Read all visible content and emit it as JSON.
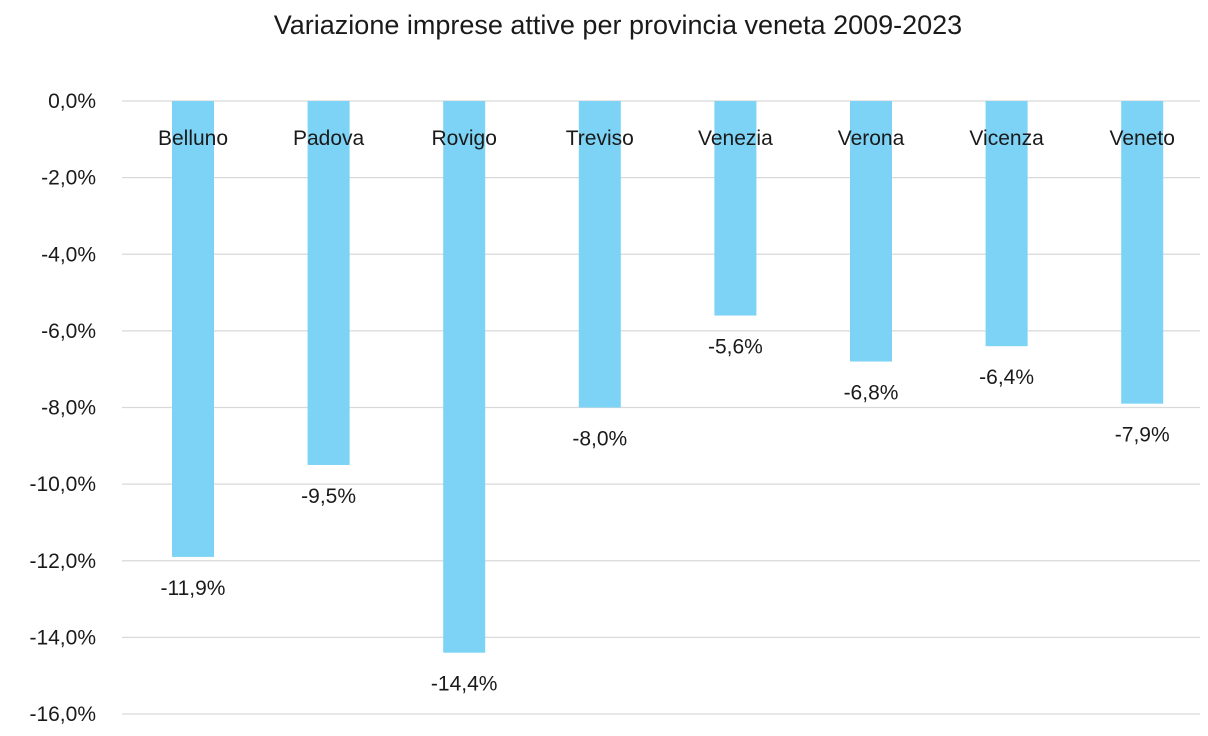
{
  "chart_data": {
    "type": "bar",
    "title": "Variazione imprese attive per provincia veneta 2009-2023",
    "categories": [
      "Belluno",
      "Padova",
      "Rovigo",
      "Treviso",
      "Venezia",
      "Verona",
      "Vicenza",
      "Veneto"
    ],
    "values": [
      -11.9,
      -9.5,
      -14.4,
      -8.0,
      -5.6,
      -6.8,
      -6.4,
      -7.9
    ],
    "data_labels": [
      "-11,9%",
      "-9,5%",
      "-14,4%",
      "-8,0%",
      "-5,6%",
      "-6,8%",
      "-6,4%",
      "-7,9%"
    ],
    "y_ticks": [
      0,
      -2,
      -4,
      -6,
      -8,
      -10,
      -12,
      -14,
      -16
    ],
    "y_tick_labels": [
      "0,0%",
      "-2,0%",
      "-4,0%",
      "-6,0%",
      "-8,0%",
      "-10,0%",
      "-12,0%",
      "-14,0%",
      "-16,0%"
    ],
    "ylim": [
      -16,
      0
    ],
    "xlabel": "",
    "ylabel": "",
    "grid": true,
    "legend": "none",
    "bar_color": "#7dd3f5",
    "gridline_color": "#d9d9d9",
    "text_color": "#1a1a1a"
  }
}
